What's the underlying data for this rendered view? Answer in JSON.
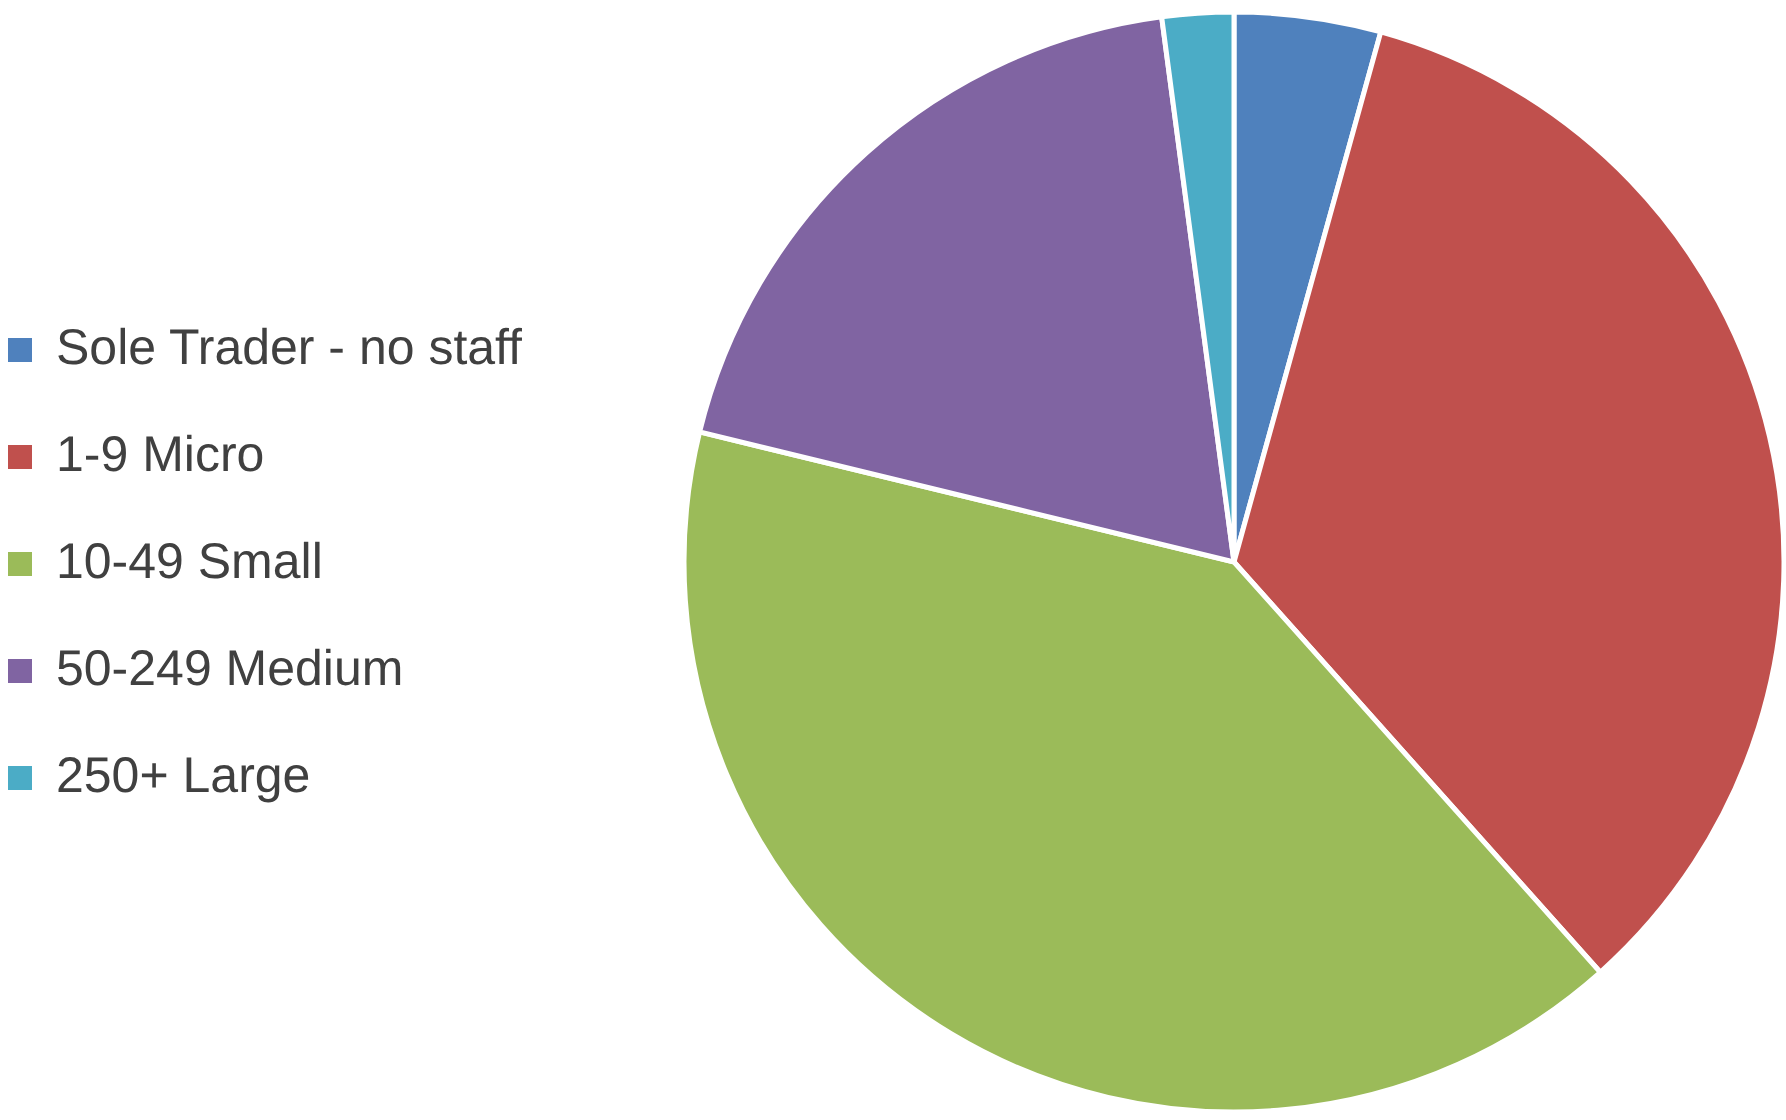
{
  "chart_data": {
    "type": "pie",
    "categories": [
      "Sole Trader - no staff",
      "1-9 Micro",
      "10-49 Small",
      "50-249 Medium",
      "250+ Large"
    ],
    "values": [
      4.3,
      34.1,
      40.4,
      19.1,
      2.1
    ],
    "colors": [
      "#4f81bd",
      "#c0504d",
      "#9bbb59",
      "#8064a2",
      "#4bacc6"
    ],
    "legend": "left"
  }
}
